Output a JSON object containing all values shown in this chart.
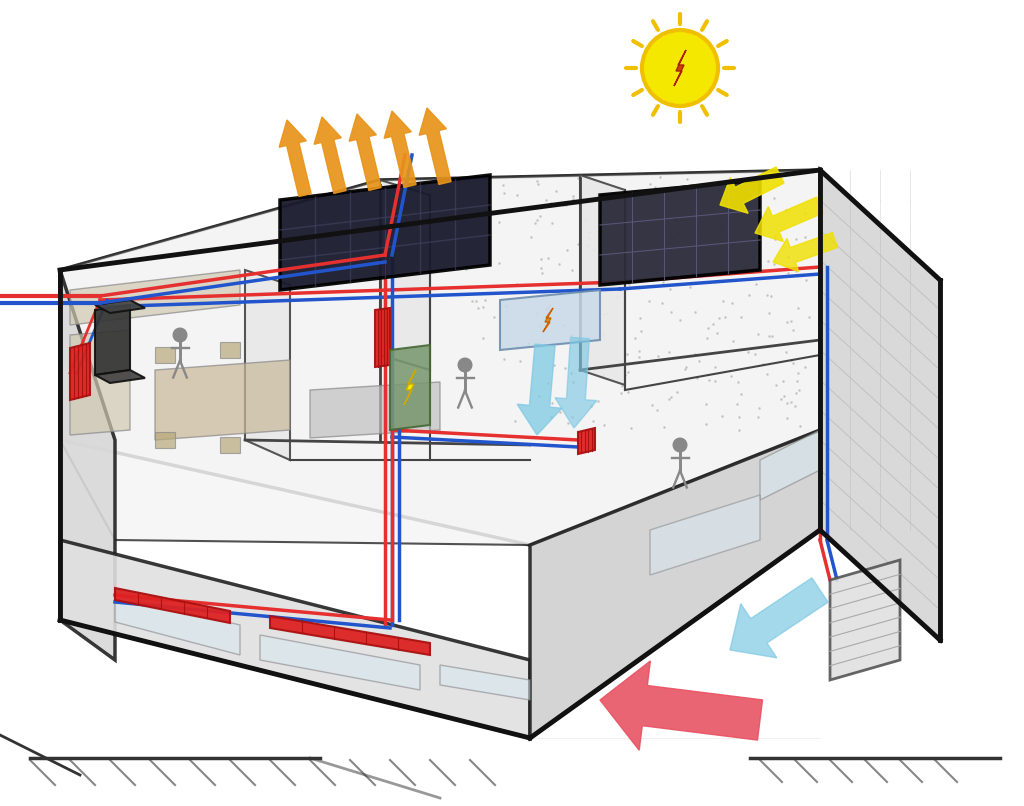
{
  "bg_color": "#ffffff",
  "red_pipe_color": "#e63030",
  "blue_pipe_color": "#2255cc",
  "arrow_orange": "#e8941a",
  "arrow_yellow": "#f0e000",
  "arrow_blue": "#7ec8e3",
  "arrow_red_large": "#e85060",
  "sun_color": "#f5e800",
  "sun_outline": "#f0c000",
  "sun_ray_color": "#f0c000",
  "bolt_color": "#cc4400",
  "solar_panel_color": "#1a1a2e",
  "pv_panel_color": "#2a2a3a",
  "wall_color": "#e8e8e8",
  "wall_dark": "#cccccc",
  "wall_edge": "#222222",
  "roof_color": "#f0f0f0",
  "brick_color": "#cccccc",
  "radiator_color": "#dd2222",
  "radiator_edge": "#aa1111",
  "boiler_color": "#7a9870",
  "ac_color": "#e0e0e0",
  "ac_blue_arrow": "#aad4e8",
  "tank_color": "#333333",
  "person_color": "#888888"
}
